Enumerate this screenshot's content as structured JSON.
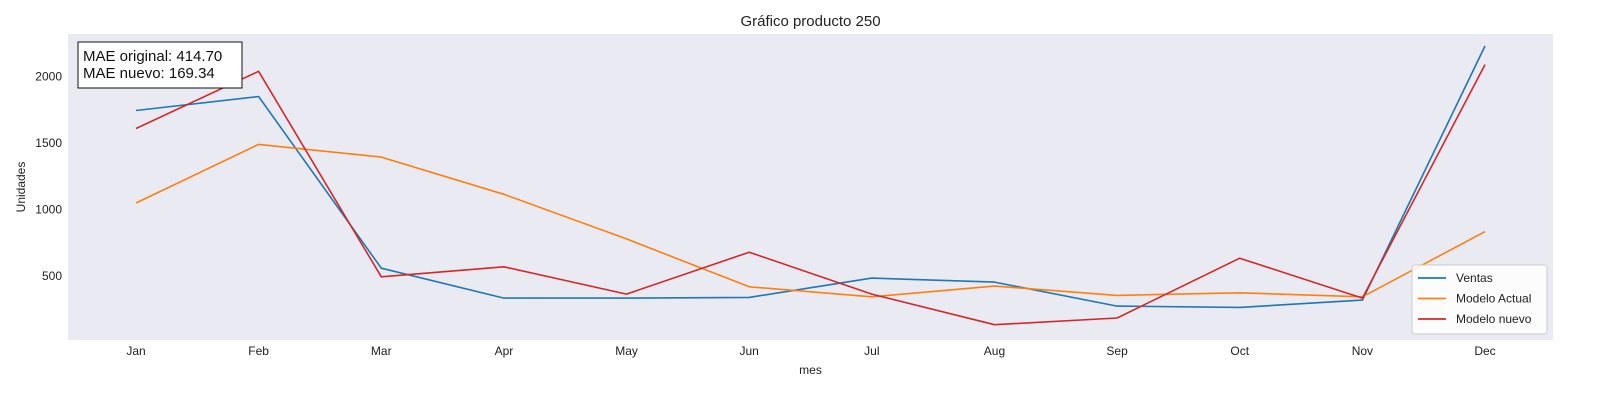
{
  "chart_data": {
    "type": "line",
    "title": "Gráfico producto 250",
    "xlabel": "mes",
    "ylabel": "Unidades",
    "categories": [
      "Jan",
      "Feb",
      "Mar",
      "Apr",
      "May",
      "Jun",
      "Jul",
      "Aug",
      "Sep",
      "Oct",
      "Nov",
      "Dec"
    ],
    "yticks": [
      500,
      1000,
      1500,
      2000
    ],
    "ylim": [
      20,
      2320
    ],
    "grid": false,
    "legend_position": "lower-right",
    "background": "#eaeaf2",
    "series": [
      {
        "name": "Ventas",
        "color": "#1f77b4",
        "values": [
          1745,
          1850,
          560,
          335,
          335,
          340,
          485,
          455,
          275,
          265,
          320,
          2230
        ]
      },
      {
        "name": "Modelo Actual",
        "color": "#ff7f0e",
        "values": [
          1050,
          1490,
          1395,
          1115,
          780,
          420,
          345,
          425,
          355,
          375,
          345,
          835
        ]
      },
      {
        "name": "Modelo nuevo",
        "color": "#d62728",
        "values": [
          1610,
          2040,
          495,
          570,
          365,
          680,
          365,
          135,
          185,
          635,
          335,
          2090
        ]
      }
    ],
    "annotations": [
      "MAE original: 414.70",
      "MAE nuevo: 169.34"
    ]
  }
}
